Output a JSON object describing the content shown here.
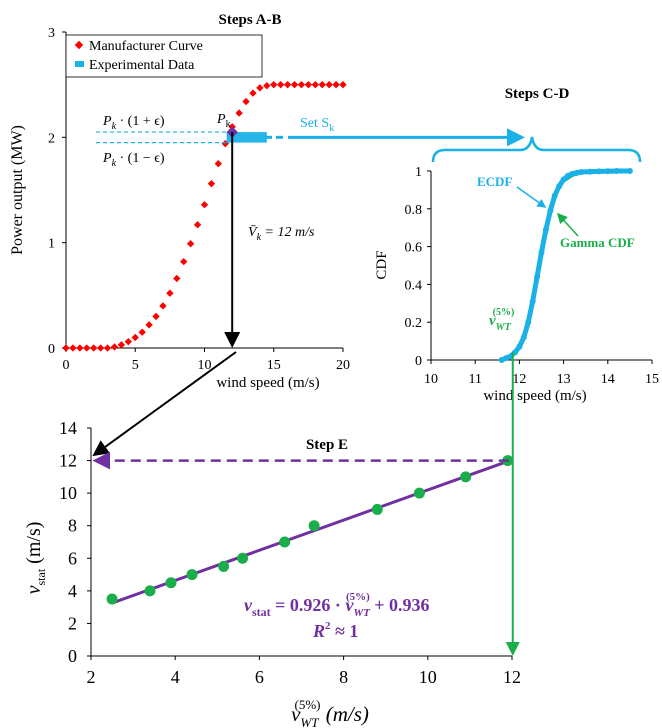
{
  "colors": {
    "manufacturer": "#ff0000",
    "experimental": "#1ab0e8",
    "gamma": "#1aae4a",
    "regression": "#7030a0",
    "axis": "#000000"
  },
  "chart_data": [
    {
      "id": "power_curve",
      "type": "scatter",
      "title": "Steps A-B",
      "xlabel": "wind speed (m/s)",
      "ylabel": "Power output (MW)",
      "xlim": [
        0,
        20
      ],
      "ylim": [
        0,
        3
      ],
      "x_ticks": [
        "0",
        "5",
        "10",
        "15",
        "20"
      ],
      "y_ticks": [
        "0",
        "1",
        "2",
        "3"
      ],
      "legend": {
        "placement": "top-left",
        "entries": [
          "Manufacturer Curve",
          "Experimental Data"
        ]
      },
      "series": [
        {
          "name": "Manufacturer Curve",
          "x": [
            0,
            0.5,
            1,
            1.5,
            2,
            2.5,
            3,
            3.5,
            4,
            4.5,
            5,
            5.5,
            6,
            6.5,
            7,
            7.5,
            8,
            8.5,
            9,
            9.5,
            10,
            10.5,
            11,
            11.5,
            12,
            12.5,
            13,
            13.5,
            14,
            14.5,
            15,
            15.5,
            16,
            16.5,
            17,
            17.5,
            18,
            18.5,
            19,
            19.5,
            20
          ],
          "y": [
            0,
            0,
            0,
            0,
            0,
            0,
            0,
            0.01,
            0.03,
            0.06,
            0.1,
            0.15,
            0.22,
            0.3,
            0.4,
            0.52,
            0.66,
            0.82,
            0.99,
            1.17,
            1.36,
            1.56,
            1.75,
            1.94,
            2.1,
            2.23,
            2.34,
            2.42,
            2.47,
            2.49,
            2.5,
            2.5,
            2.5,
            2.5,
            2.5,
            2.5,
            2.5,
            2.5,
            2.5,
            2.5,
            2.5
          ]
        },
        {
          "name": "Experimental Data",
          "x_range": [
            11.6,
            14.5
          ],
          "y_range": [
            1.95,
            2.05
          ],
          "count": 40
        }
      ],
      "annotations": {
        "pk_label": "P",
        "pk_sub": "k",
        "upper_label": "P",
        "upper_sub": "k",
        "upper_rest": " · (1 + ϵ)",
        "lower_label": "P",
        "lower_sub": "k",
        "lower_rest": " · (1 − ϵ)",
        "vbar_label": "V̄",
        "vbar_sub": "k",
        "vbar_rest": " = 12 m/s",
        "set_label": "Set S",
        "set_sub": "k",
        "pk_point": {
          "x": 12,
          "y": 2.05
        },
        "band": [
          1.95,
          2.05
        ]
      }
    },
    {
      "id": "cdf",
      "type": "line",
      "title": "Steps C-D",
      "xlabel": "wind speed (m/s)",
      "ylabel": "CDF",
      "xlim": [
        10,
        15
      ],
      "ylim": [
        0,
        1
      ],
      "x_ticks": [
        "10",
        "11",
        "12",
        "13",
        "14",
        "15"
      ],
      "y_ticks": [
        "0",
        "0.2",
        "0.4",
        "0.6",
        "0.8",
        "1"
      ],
      "series": [
        {
          "name": "ECDF",
          "x": [
            11.6,
            11.7,
            11.8,
            11.9,
            12.0,
            12.1,
            12.2,
            12.3,
            12.4,
            12.5,
            12.6,
            12.7,
            12.8,
            12.9,
            13.0,
            13.1,
            13.2,
            13.3,
            13.4,
            13.6,
            13.8,
            14.0,
            14.2,
            14.5
          ],
          "y": [
            0,
            0.01,
            0.02,
            0.04,
            0.07,
            0.12,
            0.2,
            0.31,
            0.44,
            0.57,
            0.69,
            0.79,
            0.87,
            0.92,
            0.955,
            0.975,
            0.985,
            0.99,
            0.995,
            0.997,
            0.998,
            0.999,
            1.0,
            1.0
          ]
        },
        {
          "name": "Gamma CDF",
          "x": [
            12.7,
            12.8,
            12.9,
            13.0,
            13.2,
            13.4,
            13.6,
            13.8,
            14.0,
            14.2,
            14.5
          ],
          "y": [
            0.8,
            0.87,
            0.92,
            0.95,
            0.98,
            0.993,
            0.997,
            0.999,
            1.0,
            1.0,
            1.0
          ]
        }
      ],
      "annotations": {
        "ecdf_label": "ECDF",
        "gamma_label": "Gamma CDF",
        "v_label": "v",
        "v_sub": "WT",
        "v_sup": "(5%)",
        "v_x": 11.85
      }
    },
    {
      "id": "regression",
      "type": "scatter",
      "title": "Step E",
      "xlabel": "v",
      "xlabel_sub": "WT",
      "xlabel_sup": "(5%)",
      "xlabel_unit": " (m/s)",
      "ylabel": "v",
      "ylabel_sub": "stat",
      "ylabel_unit": " (m/s)",
      "xlim": [
        2,
        12
      ],
      "ylim": [
        0,
        14
      ],
      "x_ticks": [
        "2",
        "4",
        "6",
        "8",
        "10",
        "12"
      ],
      "y_ticks": [
        "0",
        "2",
        "4",
        "6",
        "8",
        "10",
        "12",
        "14"
      ],
      "series": [
        {
          "name": "points",
          "x": [
            2.5,
            3.4,
            3.9,
            4.4,
            5.15,
            5.6,
            6.6,
            7.3,
            8.8,
            9.8,
            10.9,
            11.9
          ],
          "y": [
            3.5,
            4.0,
            4.5,
            5.0,
            5.5,
            6.0,
            7.0,
            8.0,
            9.0,
            10.0,
            11.0,
            12.0
          ]
        }
      ],
      "fit": {
        "slope": 0.926,
        "intercept": 0.936,
        "x_range": [
          2.5,
          11.9
        ]
      },
      "annotations": {
        "eq_v": "v",
        "eq_sub": "stat",
        "eq_mid": " = 0.926 · ",
        "eq_v2": "v",
        "eq_sub2": "WT",
        "eq_sup2": "(5%)",
        "eq_end": " + 0.936",
        "r2_label": "R",
        "r2_sup": "2",
        "r2_rest": " ≈ 1"
      }
    }
  ]
}
